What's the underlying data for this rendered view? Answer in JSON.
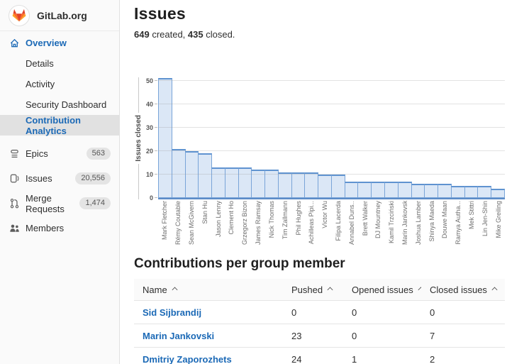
{
  "colors": {
    "accent_blue": "#1b69b6",
    "sidebar_bg": "#fafafa",
    "active_item_bg": "#e1e1e1",
    "bar_fill": "#dbe7f6",
    "bar_border": "#5f93d0",
    "badge_bg": "#e4e4e4"
  },
  "icons": {
    "logo": "gitlab-tanuki-icon",
    "overview": "home-icon",
    "epics": "epics-icon",
    "issues": "issues-icon",
    "merge_requests": "merge-requests-icon",
    "members": "members-icon",
    "sort": "chevron-up-icon"
  },
  "sidebar": {
    "group_name": "GitLab.org",
    "overview_label": "Overview",
    "subitems": [
      "Details",
      "Activity",
      "Security Dashboard",
      "Contribution Analytics"
    ],
    "active_subitem": "Contribution Analytics",
    "epics": {
      "label": "Epics",
      "badge": "563"
    },
    "issues": {
      "label": "Issues",
      "badge": "20,556"
    },
    "merge_requests": {
      "label": "Merge Requests",
      "badge": "1,474"
    },
    "members": {
      "label": "Members"
    }
  },
  "header": {
    "title": "Issues",
    "created_count": "649",
    "created_label": " created, ",
    "closed_count": "435",
    "closed_label": " closed."
  },
  "chart_data": {
    "type": "bar",
    "title": "",
    "ylabel": "Issues closed",
    "xlabel": "",
    "ylim": [
      0,
      52
    ],
    "yticks": [
      0,
      10,
      20,
      30,
      40,
      50
    ],
    "grid": "on",
    "legend": "none",
    "categories": [
      "Mark Fletcher",
      "Rémy Coutable",
      "Sean McGivern",
      "Stan Hu",
      "Jason Lenny",
      "Clement Ho",
      "Grzegorz Bizon",
      "James Ramsay",
      "Nick Thomas",
      "Tim Zallmann",
      "Phil Hughes",
      "Achilleas Pipi...",
      "Victor Wu",
      "Filipa Lacerda",
      "Annabel Duns...",
      "Brett Walker",
      "DJ Mountney",
      "Kamil Trzciński",
      "Marin Jankovski",
      "Joshua Lambert",
      "Shinya Maeda",
      "Douwe Maan",
      "Ramya Autha...",
      "Mek Stittri",
      "Lin Jen-Shin",
      "Mike Greiling"
    ],
    "values": [
      51,
      21,
      20,
      19,
      13,
      13,
      13,
      12,
      12,
      11,
      11,
      11,
      10,
      10,
      7,
      7,
      7,
      7,
      7,
      6,
      6,
      6,
      5,
      5,
      5,
      4
    ]
  },
  "table": {
    "title": "Contributions per group member",
    "columns": [
      "Name",
      "Pushed",
      "Opened issues",
      "Closed issues"
    ],
    "rows": [
      [
        "Sid Sijbrandij",
        "0",
        "0",
        "0"
      ],
      [
        "Marin Jankovski",
        "23",
        "0",
        "7"
      ],
      [
        "Dmitriy Zaporozhets",
        "24",
        "1",
        "2"
      ]
    ]
  }
}
